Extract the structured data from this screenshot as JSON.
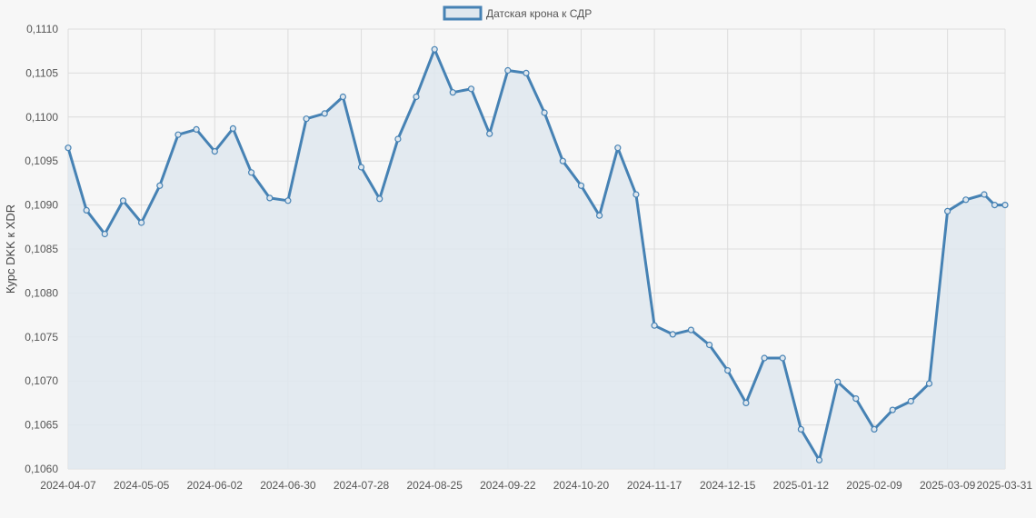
{
  "chart_data": {
    "type": "area",
    "ylabel": "Курс DKK к XDR",
    "xlabel": "",
    "ylim": [
      0.106,
      0.111
    ],
    "y_ticks": [
      "0,1060",
      "0,1065",
      "0,1070",
      "0,1075",
      "0,1080",
      "0,1085",
      "0,1090",
      "0,1095",
      "0,1100",
      "0,1105",
      "0,1110"
    ],
    "x_tick_labels": [
      "2024-04-07",
      "2024-05-05",
      "2024-06-02",
      "2024-06-30",
      "2024-07-28",
      "2024-08-25",
      "2024-09-22",
      "2024-10-20",
      "2024-11-17",
      "2024-12-15",
      "2025-01-12",
      "2025-02-09",
      "2025-03-09",
      "2025-03-31"
    ],
    "grid": true,
    "legend_position": "top-center",
    "colors": {
      "line": "#4682b4",
      "fill": "#dfe7ee",
      "grid": "#dcdcdc",
      "background": "#f7f7f7"
    },
    "series": [
      {
        "name": "Датская крона к СДР",
        "x": [
          "2024-04-07",
          "2024-04-14",
          "2024-04-21",
          "2024-04-28",
          "2024-05-05",
          "2024-05-12",
          "2024-05-19",
          "2024-05-26",
          "2024-06-02",
          "2024-06-09",
          "2024-06-16",
          "2024-06-23",
          "2024-06-30",
          "2024-07-07",
          "2024-07-14",
          "2024-07-21",
          "2024-07-28",
          "2024-08-04",
          "2024-08-11",
          "2024-08-18",
          "2024-08-25",
          "2024-09-01",
          "2024-09-08",
          "2024-09-15",
          "2024-09-22",
          "2024-09-29",
          "2024-10-06",
          "2024-10-13",
          "2024-10-20",
          "2024-10-27",
          "2024-11-03",
          "2024-11-10",
          "2024-11-17",
          "2024-11-24",
          "2024-12-01",
          "2024-12-08",
          "2024-12-15",
          "2024-12-22",
          "2024-12-29",
          "2025-01-05",
          "2025-01-12",
          "2025-01-19",
          "2025-01-26",
          "2025-02-02",
          "2025-02-09",
          "2025-02-16",
          "2025-02-23",
          "2025-03-02",
          "2025-03-09",
          "2025-03-16",
          "2025-03-23",
          "2025-03-27",
          "2025-03-31"
        ],
        "values": [
          0.10965,
          0.10894,
          0.10867,
          0.10905,
          0.1088,
          0.10922,
          0.1098,
          0.10986,
          0.10961,
          0.10987,
          0.10937,
          0.10908,
          0.10905,
          0.10998,
          0.11004,
          0.11023,
          0.10943,
          0.10907,
          0.10975,
          0.11023,
          0.11077,
          0.11028,
          0.11032,
          0.10981,
          0.11053,
          0.1105,
          0.11005,
          0.1095,
          0.10922,
          0.10888,
          0.10965,
          0.10912,
          0.10763,
          0.10753,
          0.10758,
          0.10741,
          0.10712,
          0.10675,
          0.10726,
          0.10726,
          0.10645,
          0.1061,
          0.10699,
          0.1068,
          0.10645,
          0.10667,
          0.10677,
          0.10697,
          0.10893,
          0.10906,
          0.10912,
          0.109,
          0.109
        ]
      }
    ]
  }
}
